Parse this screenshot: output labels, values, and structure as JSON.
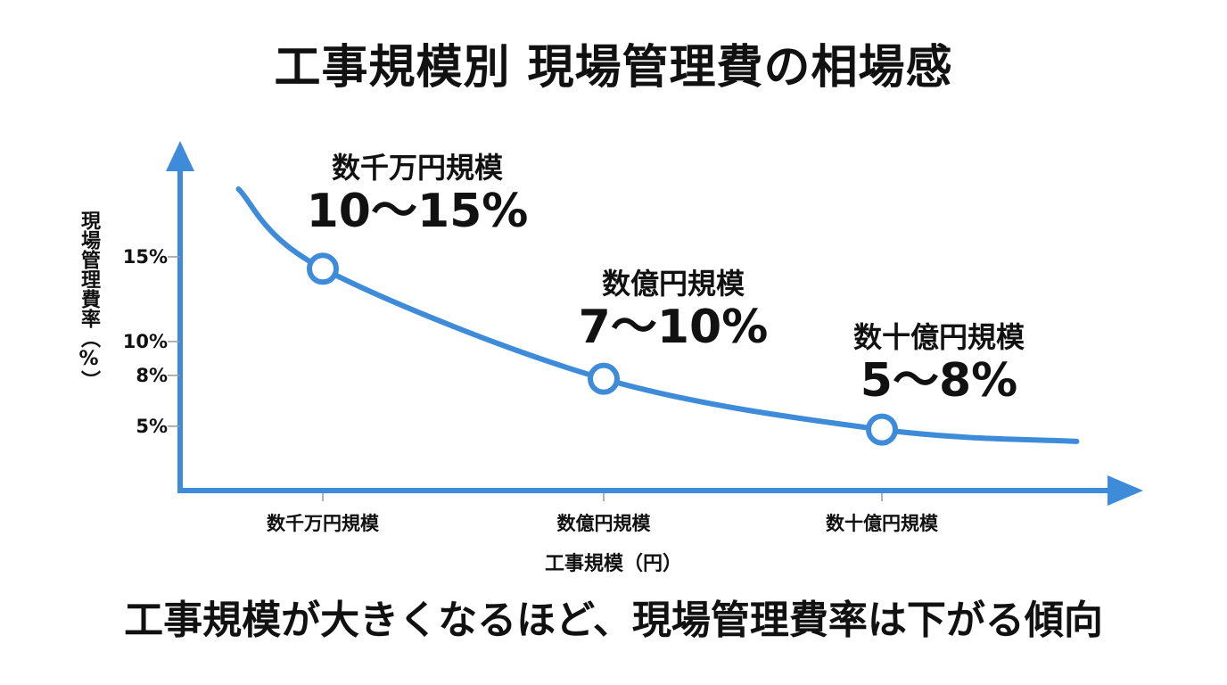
{
  "title": "工事規模別 現場管理費の相場感",
  "caption": "工事規模が大きくなるほど、現場管理費率は下がる傾向",
  "colors": {
    "curve": "#3d8bd9",
    "axis": "#3d8bd9",
    "text": "#111111",
    "tick": "#999999"
  },
  "chart_data": {
    "type": "line",
    "title": "工事規模別 現場管理費の相場感",
    "xlabel": "工事規模（円）",
    "ylabel": "現場管理費率（%）",
    "categories": [
      "数千万円規模",
      "数億円規模",
      "数十億円規模"
    ],
    "y_ticks": [
      {
        "label": "15%",
        "value": 15
      },
      {
        "label": "10%",
        "value": 10
      },
      {
        "label": "8%",
        "value": 8
      },
      {
        "label": "5%",
        "value": 5
      }
    ],
    "ylim": [
      1.2,
      19
    ],
    "curve": {
      "x": [
        -0.3,
        0,
        1,
        2,
        2.7
      ],
      "y": [
        19,
        14.3,
        7.8,
        4.8,
        4.1
      ]
    },
    "annotations": [
      {
        "label": "数千万円規模",
        "value": "10〜15%"
      },
      {
        "label": "数億円規模",
        "value": "7〜10%"
      },
      {
        "label": "数十億円規模",
        "value": "5〜8%"
      }
    ],
    "grid": false,
    "legend": "none"
  }
}
